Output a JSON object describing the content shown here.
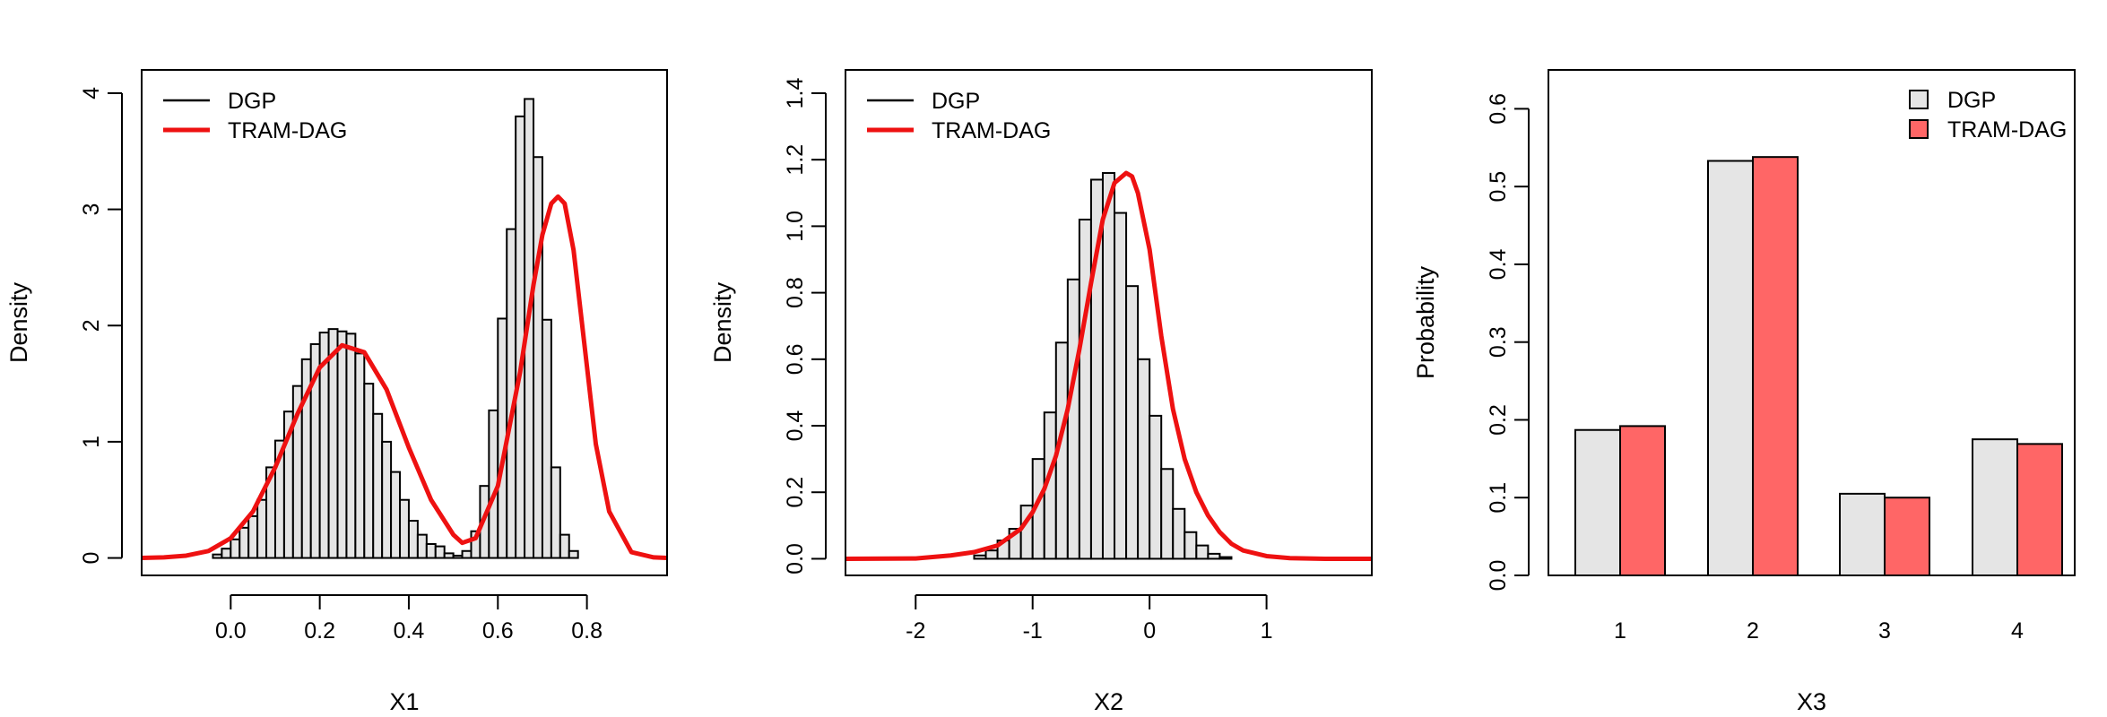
{
  "chart_data": [
    {
      "type": "histogram",
      "xlabel": "X1",
      "ylabel": "Density",
      "xlim": [
        -0.2,
        0.98
      ],
      "ylim": [
        -0.15,
        4.2
      ],
      "x_ticks": [
        0.0,
        0.2,
        0.4,
        0.6,
        0.8
      ],
      "x_tick_labels": [
        "0.0",
        "0.2",
        "0.4",
        "0.6",
        "0.8"
      ],
      "y_ticks": [
        0,
        1,
        2,
        3,
        4
      ],
      "y_tick_labels": [
        "0",
        "1",
        "2",
        "3",
        "4"
      ],
      "legend": {
        "position": "top-left",
        "entries": [
          {
            "label": "DGP",
            "color": "#000000"
          },
          {
            "label": "TRAM-DAG",
            "color": "#ee1111"
          }
        ]
      },
      "histogram": {
        "fill": "#e5e5e5",
        "bin_width": 0.02,
        "breaks_start": -0.04,
        "counts": [
          0.03,
          0.08,
          0.16,
          0.26,
          0.36,
          0.5,
          0.78,
          1.01,
          1.26,
          1.48,
          1.71,
          1.84,
          1.94,
          1.97,
          1.95,
          1.93,
          1.76,
          1.5,
          1.24,
          1.0,
          0.74,
          0.5,
          0.32,
          0.2,
          0.12,
          0.1,
          0.04,
          0.02,
          0.06,
          0.23,
          0.62,
          1.27,
          2.06,
          2.83,
          3.8,
          3.95,
          3.45,
          2.05,
          0.78,
          0.2,
          0.06
        ]
      },
      "curve": {
        "name": "TRAM-DAG",
        "color": "#ee1111",
        "x": [
          -0.2,
          -0.15,
          -0.1,
          -0.05,
          0.0,
          0.05,
          0.1,
          0.15,
          0.2,
          0.25,
          0.3,
          0.35,
          0.4,
          0.45,
          0.5,
          0.52,
          0.55,
          0.6,
          0.65,
          0.68,
          0.7,
          0.72,
          0.735,
          0.75,
          0.77,
          0.8,
          0.82,
          0.85,
          0.9,
          0.95,
          0.98
        ],
        "y": [
          0.0,
          0.005,
          0.02,
          0.06,
          0.17,
          0.4,
          0.78,
          1.24,
          1.64,
          1.83,
          1.77,
          1.45,
          0.95,
          0.5,
          0.2,
          0.13,
          0.17,
          0.62,
          1.6,
          2.35,
          2.78,
          3.05,
          3.11,
          3.05,
          2.65,
          1.65,
          0.98,
          0.4,
          0.05,
          0.005,
          0.0
        ]
      }
    },
    {
      "type": "histogram",
      "xlabel": "X2",
      "ylabel": "Density",
      "xlim": [
        -2.6,
        1.9
      ],
      "ylim": [
        -0.05,
        1.47
      ],
      "x_ticks": [
        -2,
        -1,
        0,
        1
      ],
      "x_tick_labels": [
        "-2",
        "-1",
        "0",
        "1"
      ],
      "y_ticks": [
        0.0,
        0.2,
        0.4,
        0.6,
        0.8,
        1.0,
        1.2,
        1.4
      ],
      "y_tick_labels": [
        "0.0",
        "0.2",
        "0.4",
        "0.6",
        "0.8",
        "1.0",
        "1.2",
        "1.4"
      ],
      "legend": {
        "position": "top-left",
        "entries": [
          {
            "label": "DGP",
            "color": "#000000"
          },
          {
            "label": "TRAM-DAG",
            "color": "#ee1111"
          }
        ]
      },
      "histogram": {
        "fill": "#e5e5e5",
        "bin_width": 0.1,
        "breaks_start": -1.5,
        "counts": [
          0.01,
          0.025,
          0.055,
          0.09,
          0.16,
          0.3,
          0.44,
          0.65,
          0.84,
          1.02,
          1.14,
          1.16,
          1.04,
          0.82,
          0.6,
          0.43,
          0.27,
          0.15,
          0.08,
          0.04,
          0.015,
          0.005
        ]
      },
      "curve": {
        "name": "TRAM-DAG",
        "color": "#ee1111",
        "x": [
          -2.6,
          -2.0,
          -1.7,
          -1.5,
          -1.3,
          -1.1,
          -1.0,
          -0.9,
          -0.8,
          -0.7,
          -0.6,
          -0.5,
          -0.4,
          -0.3,
          -0.2,
          -0.15,
          -0.1,
          0.0,
          0.1,
          0.2,
          0.3,
          0.4,
          0.5,
          0.6,
          0.7,
          0.8,
          1.0,
          1.2,
          1.5,
          1.9
        ],
        "y": [
          0.0,
          0.001,
          0.01,
          0.02,
          0.04,
          0.09,
          0.14,
          0.21,
          0.31,
          0.45,
          0.63,
          0.83,
          1.02,
          1.13,
          1.16,
          1.15,
          1.1,
          0.93,
          0.67,
          0.45,
          0.3,
          0.2,
          0.13,
          0.08,
          0.045,
          0.025,
          0.008,
          0.002,
          0.0,
          0.0
        ]
      }
    },
    {
      "type": "bar",
      "xlabel": "X3",
      "ylabel": "Probability",
      "ylim": [
        0.0,
        0.65
      ],
      "y_ticks": [
        0.0,
        0.1,
        0.2,
        0.3,
        0.4,
        0.5,
        0.6
      ],
      "y_tick_labels": [
        "0.0",
        "0.1",
        "0.2",
        "0.3",
        "0.4",
        "0.5",
        "0.6"
      ],
      "categories": [
        "1",
        "2",
        "3",
        "4"
      ],
      "series": [
        {
          "name": "DGP",
          "color": "#e5e5e5",
          "values": [
            0.187,
            0.533,
            0.105,
            0.175
          ]
        },
        {
          "name": "TRAM-DAG",
          "color": "#ff6666",
          "values": [
            0.192,
            0.538,
            0.1,
            0.169
          ]
        }
      ],
      "legend": {
        "position": "top-right"
      }
    }
  ]
}
